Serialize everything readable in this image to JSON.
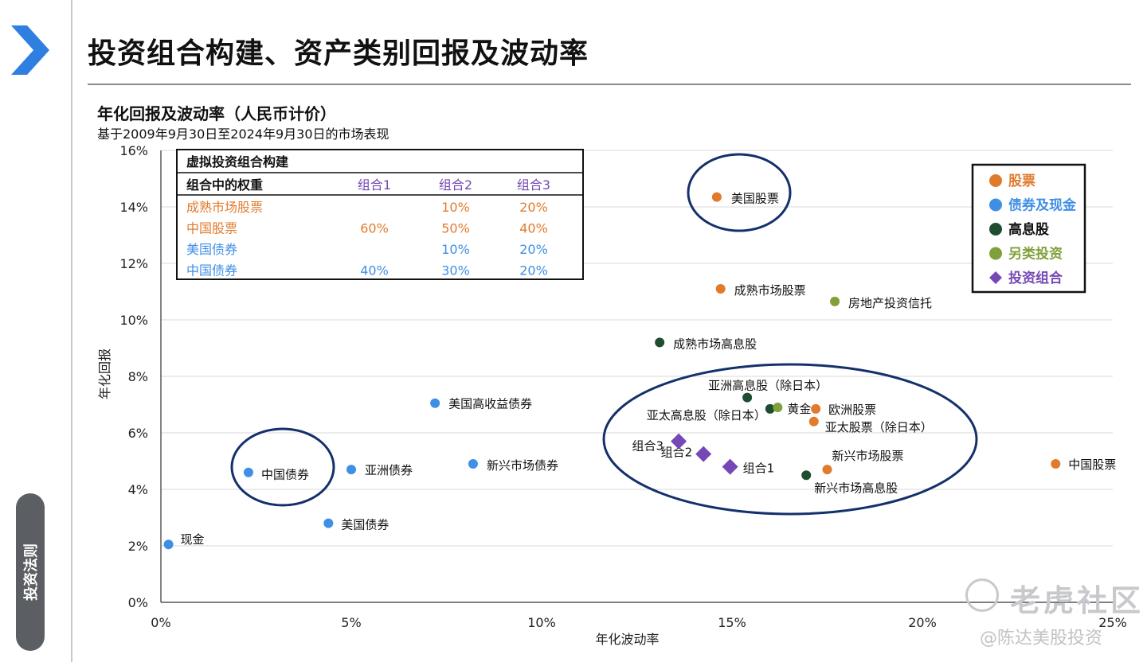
{
  "page": {
    "title": "投资组合构建、资产类别回报及波动率",
    "side_tab": "投资法则"
  },
  "watermark": {
    "logo": "老虎社区",
    "author": "@陈达美股投资"
  },
  "colors": {
    "stocks": "#E07B2E",
    "bonds_cash": "#3F8FE5",
    "dividend": "#1E4D30",
    "alternative": "#7FA03A",
    "portfolio": "#7548B5",
    "circle": "#14306B",
    "chevron": "#2F7FE0"
  },
  "weights_table": {
    "heading": "虚拟投资组合构建",
    "header": [
      "组合中的权重",
      "组合1",
      "组合2",
      "组合3"
    ],
    "rows": [
      {
        "asset": "成熟市场股票",
        "group": "stocks",
        "values": [
          "",
          "10%",
          "20%"
        ]
      },
      {
        "asset": "中国股票",
        "group": "stocks",
        "values": [
          "60%",
          "50%",
          "40%"
        ]
      },
      {
        "asset": "美国债券",
        "group": "bonds_cash",
        "values": [
          "",
          "10%",
          "20%"
        ]
      },
      {
        "asset": "中国债券",
        "group": "bonds_cash",
        "values": [
          "40%",
          "30%",
          "20%"
        ]
      }
    ]
  },
  "chart_data": {
    "type": "scatter",
    "title": "年化回报及波动率（人民币计价）",
    "subtitle": "基于2009年9月30日至2024年9月30日的市场表现",
    "xlabel": "年化波动率",
    "ylabel": "年化回报",
    "xlim": [
      0,
      25
    ],
    "ylim": [
      0,
      16
    ],
    "x_ticks": [
      "0%",
      "5%",
      "10%",
      "15%",
      "20%",
      "25%"
    ],
    "y_ticks": [
      "0%",
      "2%",
      "4%",
      "6%",
      "8%",
      "10%",
      "12%",
      "14%",
      "16%"
    ],
    "grid": "horizontal",
    "legend_position": "top-right",
    "legend": [
      {
        "name": "股票",
        "group": "stocks",
        "marker": "circle"
      },
      {
        "name": "债券及现金",
        "group": "bonds_cash",
        "marker": "circle"
      },
      {
        "name": "高息股",
        "group": "dividend",
        "marker": "circle"
      },
      {
        "name": "另类投资",
        "group": "alternative",
        "marker": "circle"
      },
      {
        "name": "投资组合",
        "group": "portfolio",
        "marker": "diamond"
      }
    ],
    "points": [
      {
        "label": "美国股票",
        "x": 14.6,
        "y": 14.35,
        "group": "stocks"
      },
      {
        "label": "成熟市场股票",
        "x": 14.7,
        "y": 11.1,
        "group": "stocks"
      },
      {
        "label": "欧洲股票",
        "x": 17.2,
        "y": 6.85,
        "group": "stocks"
      },
      {
        "label": "亚太股票（除日本）",
        "x": 17.15,
        "y": 6.4,
        "group": "stocks"
      },
      {
        "label": "新兴市场股票",
        "x": 17.5,
        "y": 4.7,
        "group": "stocks"
      },
      {
        "label": "中国股票",
        "x": 23.5,
        "y": 4.9,
        "group": "stocks"
      },
      {
        "label": "美国高收益债券",
        "x": 7.2,
        "y": 7.05,
        "group": "bonds_cash"
      },
      {
        "label": "中国债券",
        "x": 2.3,
        "y": 4.6,
        "group": "bonds_cash"
      },
      {
        "label": "亚洲债券",
        "x": 5.0,
        "y": 4.7,
        "group": "bonds_cash"
      },
      {
        "label": "新兴市场债券",
        "x": 8.2,
        "y": 4.9,
        "group": "bonds_cash"
      },
      {
        "label": "美国债券",
        "x": 4.4,
        "y": 2.8,
        "group": "bonds_cash"
      },
      {
        "label": "现金",
        "x": 0.2,
        "y": 2.05,
        "group": "bonds_cash"
      },
      {
        "label": "成熟市场高息股",
        "x": 13.1,
        "y": 9.2,
        "group": "dividend"
      },
      {
        "label": "亚洲高息股（除日本）",
        "x": 15.4,
        "y": 7.25,
        "group": "dividend"
      },
      {
        "label": "亚太高息股（除日本）",
        "x": 16.0,
        "y": 6.85,
        "group": "dividend"
      },
      {
        "label": "新兴市场高息股",
        "x": 16.95,
        "y": 4.5,
        "group": "dividend"
      },
      {
        "label": "房地产投资信托",
        "x": 17.7,
        "y": 10.65,
        "group": "alternative"
      },
      {
        "label": "黄金",
        "x": 16.2,
        "y": 6.9,
        "group": "alternative"
      },
      {
        "label": "组合1",
        "x": 14.95,
        "y": 4.8,
        "group": "portfolio"
      },
      {
        "label": "组合2",
        "x": 14.25,
        "y": 5.25,
        "group": "portfolio"
      },
      {
        "label": "组合3",
        "x": 13.6,
        "y": 5.7,
        "group": "portfolio"
      }
    ],
    "highlight_circles": [
      "美国股票",
      "中国债券",
      "组合"
    ]
  }
}
